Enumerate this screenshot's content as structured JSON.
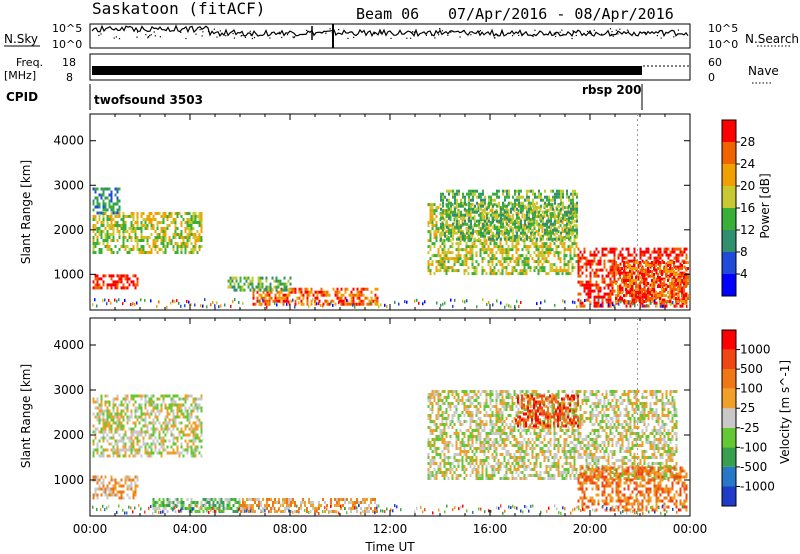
{
  "header": {
    "station": "Saskatoon (fitACF)",
    "beam": "Beam 06",
    "date_range": "07/Apr/2016 - 08/Apr/2016"
  },
  "top_panels": {
    "nsky": {
      "left_label": "N.Sky",
      "right_label": "N.Search",
      "left_ticks": [
        "10^5",
        "10^0"
      ],
      "right_ticks": [
        "10^5",
        "10^0"
      ]
    },
    "freq": {
      "left_label_line1": "Freq.",
      "left_label_line2": "[MHz]",
      "right_label": "Nave",
      "left_ticks": [
        "18",
        "8"
      ],
      "right_ticks": [
        "60",
        "0"
      ]
    },
    "cpid": {
      "label": "CPID",
      "entries": [
        {
          "name": "twofsound 3503",
          "start_hour": 0
        },
        {
          "name": "rbsp 200",
          "start_hour": 21.9
        }
      ]
    }
  },
  "chart_data": [
    {
      "type": "heatmap",
      "title": "Power",
      "ylabel": "Slant Range [km]",
      "xlabel": "",
      "y_ticks": [
        1000,
        2000,
        3000,
        4000
      ],
      "ylim": [
        200,
        4600
      ],
      "xlim_hours": [
        0,
        24
      ],
      "colorbar": {
        "label": "Power [dB]",
        "ticks": [
          "4",
          "8",
          "12",
          "16",
          "20",
          "24",
          "28"
        ],
        "colors": [
          "#0000ff",
          "#1f4bd8",
          "#2f8f6f",
          "#38b038",
          "#c8c832",
          "#f0a000",
          "#f06400",
          "#ff0000"
        ]
      },
      "echo_regions": [
        {
          "t0": 0.1,
          "t1": 1.9,
          "r0": 700,
          "r1": 1000,
          "level": 7
        },
        {
          "t0": 0.1,
          "t1": 4.5,
          "r0": 1500,
          "r1": 2400,
          "level": 4
        },
        {
          "t0": 0.1,
          "t1": 1.2,
          "r0": 2400,
          "r1": 2950,
          "level": 2
        },
        {
          "t0": 6.5,
          "t1": 11.5,
          "r0": 350,
          "r1": 700,
          "level": 6
        },
        {
          "t0": 5.5,
          "t1": 8.0,
          "r0": 650,
          "r1": 950,
          "level": 3
        },
        {
          "t0": 13.5,
          "t1": 19.5,
          "r0": 1000,
          "r1": 2600,
          "level": 4
        },
        {
          "t0": 14.0,
          "t1": 19.5,
          "r0": 1800,
          "r1": 2900,
          "level": 3
        },
        {
          "t0": 19.5,
          "t1": 23.9,
          "r0": 300,
          "r1": 1600,
          "level": 7
        },
        {
          "t0": 21.0,
          "t1": 23.9,
          "r0": 400,
          "r1": 1300,
          "level": 6
        }
      ]
    },
    {
      "type": "heatmap",
      "title": "Velocity",
      "ylabel": "Slant Range [km]",
      "xlabel": "Time UT",
      "x_ticks": [
        "00:00",
        "04:00",
        "08:00",
        "12:00",
        "16:00",
        "20:00",
        "00:00"
      ],
      "y_ticks": [
        1000,
        2000,
        3000,
        4000
      ],
      "ylim": [
        200,
        4600
      ],
      "xlim_hours": [
        0,
        24
      ],
      "colorbar": {
        "label": "Velocity [m s^-1]",
        "ticks": [
          "1000",
          "500",
          "100",
          "25",
          "-25",
          "-100",
          "-500",
          "-1000"
        ],
        "colors": [
          "#1e3cc8",
          "#2878c8",
          "#37a050",
          "#64c832",
          "#c8c8c8",
          "#f0a028",
          "#f07814",
          "#f04614",
          "#ff0000"
        ]
      },
      "echo_regions": [
        {
          "t0": 0.1,
          "t1": 1.9,
          "r0": 600,
          "r1": 1100,
          "level": 5
        },
        {
          "t0": 0.1,
          "t1": 4.5,
          "r0": 1500,
          "r1": 2900,
          "level": 4
        },
        {
          "t0": 2.5,
          "t1": 6.0,
          "r0": 300,
          "r1": 600,
          "level": 3
        },
        {
          "t0": 6.0,
          "t1": 11.5,
          "r0": 300,
          "r1": 600,
          "level": 5
        },
        {
          "t0": 13.5,
          "t1": 23.5,
          "r0": 1000,
          "r1": 3000,
          "level": 4
        },
        {
          "t0": 17.0,
          "t1": 19.5,
          "r0": 2200,
          "r1": 2900,
          "level": 7
        },
        {
          "t0": 19.5,
          "t1": 23.9,
          "r0": 300,
          "r1": 1300,
          "level": 6
        }
      ]
    }
  ]
}
